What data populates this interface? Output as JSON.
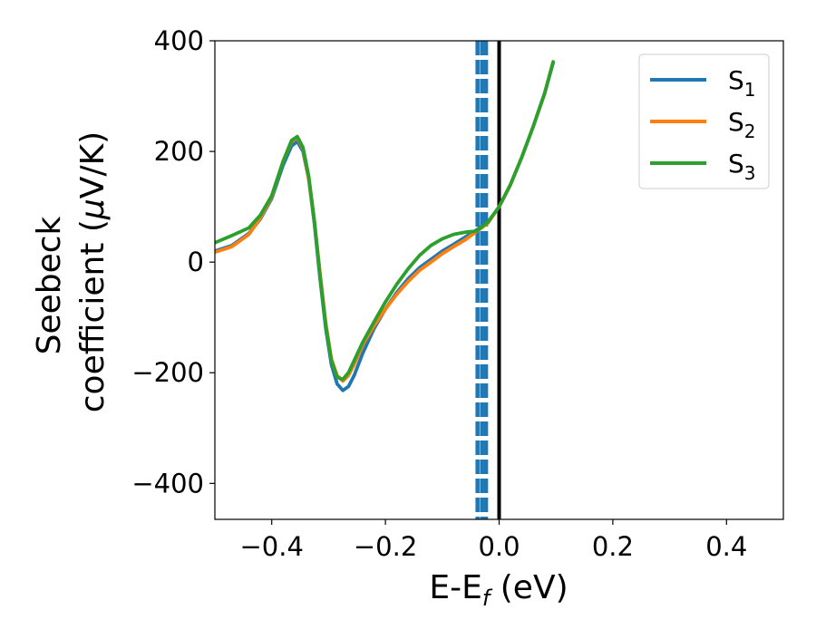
{
  "chart_data": {
    "type": "line",
    "title": "",
    "xlabel": {
      "main": "E-E",
      "sub": "f",
      "tail": " (eV)"
    },
    "ylabel": {
      "line1": "Seebeck",
      "line2": "coefficient  (",
      "mu": "μ",
      "tail": "V/K)"
    },
    "xlim": [
      -0.5,
      0.5
    ],
    "ylim": [
      -465,
      400
    ],
    "xticks": [
      -0.4,
      -0.2,
      0.0,
      0.2,
      0.4
    ],
    "xtick_labels": [
      "−0.4",
      "−0.2",
      "0.0",
      "0.2",
      "0.4"
    ],
    "yticks": [
      -400,
      -200,
      0,
      200,
      400
    ],
    "ytick_labels": [
      "−400",
      "−200",
      "0",
      "200",
      "400"
    ],
    "grid": false,
    "legend_position": "upper-right",
    "series": [
      {
        "name": "S",
        "sub": "1",
        "color": "#1f77b4",
        "x": [
          -0.5,
          -0.47,
          -0.44,
          -0.42,
          -0.4,
          -0.38,
          -0.365,
          -0.355,
          -0.345,
          -0.335,
          -0.325,
          -0.315,
          -0.305,
          -0.295,
          -0.285,
          -0.275,
          -0.265,
          -0.255,
          -0.24,
          -0.22,
          -0.2,
          -0.18,
          -0.16,
          -0.14,
          -0.12,
          -0.1,
          -0.08,
          -0.06,
          -0.04,
          -0.02,
          0.0,
          0.02,
          0.04,
          0.06,
          0.08,
          0.095
        ],
        "y": [
          20,
          30,
          52,
          78,
          115,
          175,
          210,
          218,
          200,
          150,
          70,
          -30,
          -120,
          -185,
          -220,
          -232,
          -225,
          -205,
          -165,
          -120,
          -85,
          -55,
          -30,
          -10,
          5,
          20,
          32,
          45,
          58,
          72,
          100,
          140,
          190,
          245,
          305,
          360
        ]
      },
      {
        "name": "S",
        "sub": "2",
        "color": "#ff7f0e",
        "x": [
          -0.5,
          -0.47,
          -0.44,
          -0.42,
          -0.4,
          -0.38,
          -0.365,
          -0.355,
          -0.345,
          -0.335,
          -0.325,
          -0.315,
          -0.305,
          -0.295,
          -0.285,
          -0.275,
          -0.265,
          -0.255,
          -0.24,
          -0.22,
          -0.2,
          -0.18,
          -0.16,
          -0.14,
          -0.12,
          -0.1,
          -0.08,
          -0.06,
          -0.04,
          -0.02,
          0.0,
          0.02,
          0.04,
          0.06,
          0.08,
          0.095
        ],
        "y": [
          18,
          28,
          50,
          80,
          118,
          182,
          218,
          225,
          205,
          150,
          75,
          -20,
          -110,
          -175,
          -205,
          -215,
          -205,
          -185,
          -150,
          -115,
          -85,
          -58,
          -35,
          -15,
          0,
          15,
          28,
          40,
          55,
          70,
          100,
          140,
          190,
          245,
          305,
          362
        ]
      },
      {
        "name": "S",
        "sub": "3",
        "color": "#2ca02c",
        "x": [
          -0.5,
          -0.47,
          -0.44,
          -0.42,
          -0.4,
          -0.38,
          -0.365,
          -0.355,
          -0.345,
          -0.335,
          -0.325,
          -0.315,
          -0.305,
          -0.295,
          -0.285,
          -0.275,
          -0.265,
          -0.255,
          -0.24,
          -0.22,
          -0.2,
          -0.18,
          -0.16,
          -0.14,
          -0.12,
          -0.1,
          -0.08,
          -0.06,
          -0.04,
          -0.02,
          0.0,
          0.02,
          0.04,
          0.06,
          0.08,
          0.095
        ],
        "y": [
          35,
          48,
          62,
          85,
          120,
          182,
          220,
          227,
          207,
          155,
          75,
          -25,
          -115,
          -178,
          -208,
          -212,
          -200,
          -178,
          -145,
          -108,
          -72,
          -40,
          -12,
          12,
          30,
          42,
          50,
          54,
          56,
          72,
          100,
          140,
          190,
          245,
          305,
          362
        ]
      }
    ],
    "vertical_lines": [
      {
        "x": -0.038,
        "style": "dashed",
        "color": "#1f77b4"
      },
      {
        "x": -0.03,
        "style": "dashed",
        "color": "#1f77b4"
      },
      {
        "x": -0.023,
        "style": "dashed",
        "color": "#1f77b4"
      },
      {
        "x": 0.0,
        "style": "solid",
        "color": "#000000"
      }
    ]
  }
}
